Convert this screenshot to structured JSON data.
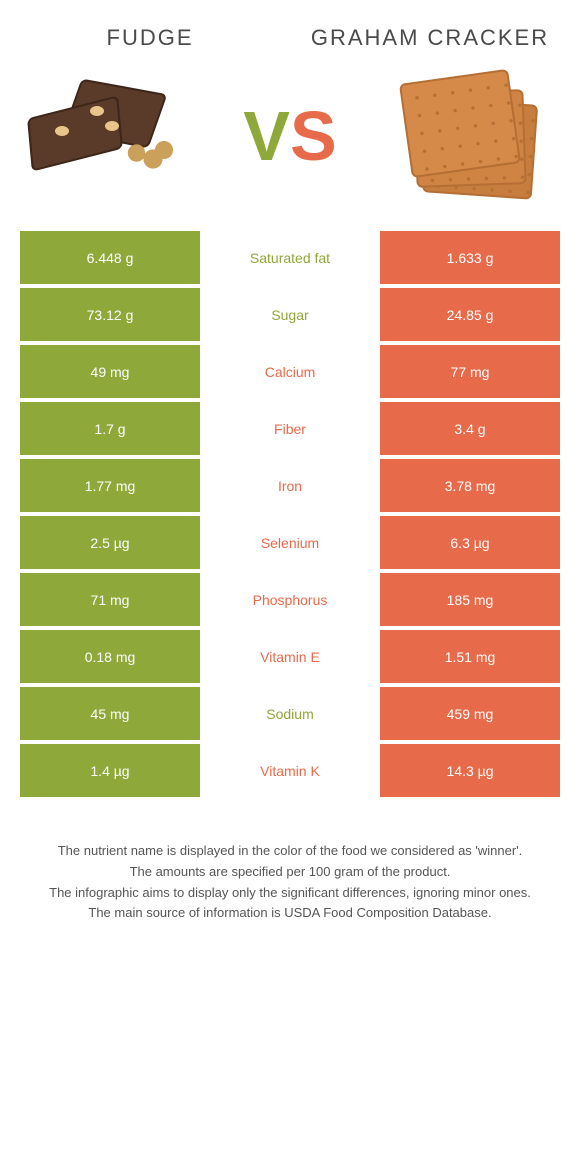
{
  "colors": {
    "left": "#8fa83a",
    "right": "#e76b4a",
    "background": "#ffffff"
  },
  "header": {
    "left_title": "Fudge",
    "right_title": "Graham Cracker",
    "vs_v": "V",
    "vs_s": "S"
  },
  "rows": [
    {
      "nutrient": "Saturated fat",
      "left": "6.448 g",
      "right": "1.633 g",
      "winner": "left"
    },
    {
      "nutrient": "Sugar",
      "left": "73.12 g",
      "right": "24.85 g",
      "winner": "left"
    },
    {
      "nutrient": "Calcium",
      "left": "49 mg",
      "right": "77 mg",
      "winner": "right"
    },
    {
      "nutrient": "Fiber",
      "left": "1.7 g",
      "right": "3.4 g",
      "winner": "right"
    },
    {
      "nutrient": "Iron",
      "left": "1.77 mg",
      "right": "3.78 mg",
      "winner": "right"
    },
    {
      "nutrient": "Selenium",
      "left": "2.5 µg",
      "right": "6.3 µg",
      "winner": "right"
    },
    {
      "nutrient": "Phosphorus",
      "left": "71 mg",
      "right": "185 mg",
      "winner": "right"
    },
    {
      "nutrient": "Vitamin E",
      "left": "0.18 mg",
      "right": "1.51 mg",
      "winner": "right"
    },
    {
      "nutrient": "Sodium",
      "left": "45 mg",
      "right": "459 mg",
      "winner": "left"
    },
    {
      "nutrient": "Vitamin K",
      "left": "1.4 µg",
      "right": "14.3 µg",
      "winner": "right"
    }
  ],
  "footer": {
    "line1": "The nutrient name is displayed in the color of the food we considered as 'winner'.",
    "line2": "The amounts are specified per 100 gram of the product.",
    "line3": "The infographic aims to display only the significant differences, ignoring minor ones.",
    "line4": "The main source of information is USDA Food Composition Database."
  }
}
